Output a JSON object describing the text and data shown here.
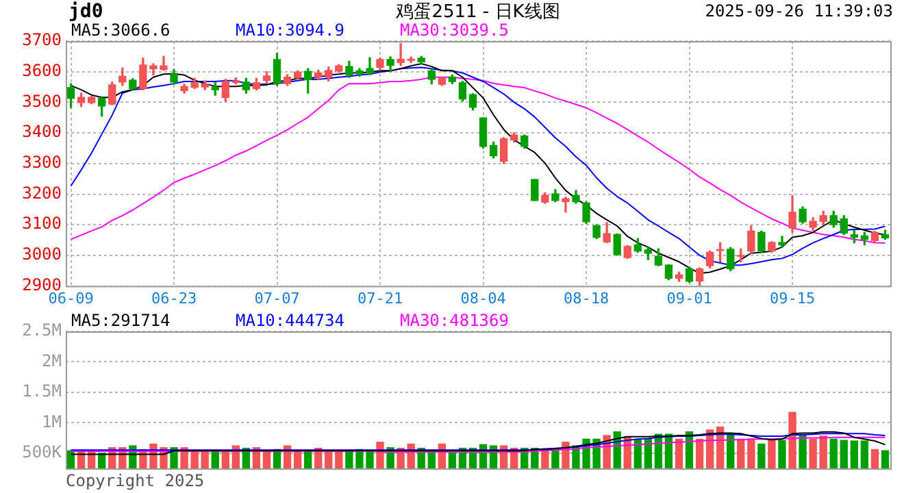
{
  "chart_data": [
    {
      "type": "candlestick",
      "title": "鸡蛋2511 - 日K线图",
      "annotations": [
        "jd0",
        "2025-09-26 11:39:03"
      ],
      "categories": [
        "06-09",
        null,
        null,
        null,
        null,
        null,
        null,
        null,
        null,
        null,
        "06-23",
        null,
        null,
        null,
        null,
        null,
        null,
        null,
        null,
        null,
        "07-07",
        null,
        null,
        null,
        null,
        null,
        null,
        null,
        null,
        null,
        "07-21",
        null,
        null,
        null,
        null,
        null,
        null,
        null,
        null,
        null,
        "08-04",
        null,
        null,
        null,
        null,
        null,
        null,
        null,
        null,
        null,
        "08-18",
        null,
        null,
        null,
        null,
        null,
        null,
        null,
        null,
        null,
        "09-01",
        null,
        null,
        null,
        null,
        null,
        null,
        null,
        null,
        null,
        "09-15",
        null,
        null,
        null,
        null,
        null,
        null,
        null,
        null,
        null
      ],
      "ohlc": [
        [
          3548,
          3561,
          3483,
          3513
        ],
        [
          3499,
          3530,
          3486,
          3516
        ],
        [
          3499,
          3520,
          3495,
          3516
        ],
        [
          3513,
          3515,
          3455,
          3488
        ],
        [
          3494,
          3566,
          3492,
          3557
        ],
        [
          3566,
          3612,
          3555,
          3585
        ],
        [
          3572,
          3577,
          3541,
          3545
        ],
        [
          3545,
          3644,
          3541,
          3622
        ],
        [
          3610,
          3626,
          3589,
          3619
        ],
        [
          3607,
          3650,
          3605,
          3619
        ],
        [
          3592,
          3607,
          3559,
          3566
        ],
        [
          3538,
          3559,
          3530,
          3552
        ],
        [
          3549,
          3578,
          3545,
          3564
        ],
        [
          3550,
          3570,
          3541,
          3559
        ],
        [
          3550,
          3564,
          3523,
          3541
        ],
        [
          3516,
          3575,
          3503,
          3568
        ],
        [
          3565,
          3580,
          3560,
          3570
        ],
        [
          3566,
          3578,
          3530,
          3541
        ],
        [
          3545,
          3578,
          3540,
          3564
        ],
        [
          3571,
          3600,
          3564,
          3586
        ],
        [
          3640,
          3660,
          3555,
          3561
        ],
        [
          3561,
          3590,
          3555,
          3582
        ],
        [
          3580,
          3603,
          3575,
          3599
        ],
        [
          3601,
          3610,
          3530,
          3574
        ],
        [
          3582,
          3605,
          3575,
          3596
        ],
        [
          3582,
          3615,
          3570,
          3604
        ],
        [
          3603,
          3623,
          3598,
          3619
        ],
        [
          3617,
          3634,
          3581,
          3589
        ],
        [
          3603,
          3610,
          3585,
          3593
        ],
        [
          3610,
          3646,
          3590,
          3596
        ],
        [
          3614,
          3645,
          3605,
          3640
        ],
        [
          3640,
          3648,
          3600,
          3621
        ],
        [
          3630,
          3692,
          3620,
          3641
        ],
        [
          3637,
          3648,
          3630,
          3641
        ],
        [
          3644,
          3650,
          3625,
          3632
        ],
        [
          3603,
          3610,
          3560,
          3575
        ],
        [
          3559,
          3583,
          3555,
          3578
        ],
        [
          3582,
          3589,
          3561,
          3568
        ],
        [
          3564,
          3568,
          3504,
          3511
        ],
        [
          3525,
          3528,
          3475,
          3484
        ],
        [
          3449,
          3449,
          3350,
          3356
        ],
        [
          3359,
          3370,
          3318,
          3325
        ],
        [
          3308,
          3385,
          3300,
          3381
        ],
        [
          3377,
          3400,
          3370,
          3393
        ],
        [
          3390,
          3393,
          3350,
          3356
        ],
        [
          3248,
          3248,
          3179,
          3179
        ],
        [
          3174,
          3204,
          3170,
          3196
        ],
        [
          3201,
          3215,
          3175,
          3179
        ],
        [
          3175,
          3190,
          3141,
          3185
        ],
        [
          3196,
          3212,
          3170,
          3175
        ],
        [
          3171,
          3175,
          3105,
          3110
        ],
        [
          3097,
          3100,
          3055,
          3059
        ],
        [
          3044,
          3107,
          3041,
          3071
        ],
        [
          3068,
          3070,
          3000,
          3003
        ],
        [
          2993,
          3032,
          2990,
          3029
        ],
        [
          3034,
          3055,
          3010,
          3014
        ],
        [
          3018,
          3027,
          2986,
          3007
        ],
        [
          2997,
          3021,
          2966,
          2968
        ],
        [
          2968,
          2970,
          2920,
          2925
        ],
        [
          2925,
          2945,
          2915,
          2936
        ],
        [
          2956,
          2960,
          2912,
          2915
        ],
        [
          2916,
          2959,
          2901,
          2956
        ],
        [
          2966,
          3014,
          2959,
          3010
        ],
        [
          3016,
          3041,
          2979,
          3019
        ],
        [
          3020,
          3025,
          2950,
          2956
        ],
        [
          2997,
          3021,
          2979,
          3000
        ],
        [
          3014,
          3096,
          3007,
          3079
        ],
        [
          3075,
          3079,
          3010,
          3014
        ],
        [
          3014,
          3045,
          3010,
          3042
        ],
        [
          3042,
          3062,
          3027,
          3034
        ],
        [
          3089,
          3194,
          3075,
          3141
        ],
        [
          3151,
          3158,
          3105,
          3110
        ],
        [
          3092,
          3123,
          3082,
          3111
        ],
        [
          3111,
          3144,
          3100,
          3130
        ],
        [
          3130,
          3144,
          3092,
          3100
        ],
        [
          3119,
          3130,
          3068,
          3073
        ],
        [
          3067,
          3082,
          3041,
          3059
        ],
        [
          3064,
          3075,
          3034,
          3052
        ],
        [
          3048,
          3078,
          3044,
          3075
        ],
        [
          3067,
          3082,
          3052,
          3057
        ]
      ],
      "colors": [
        "#009f00",
        "#f05454",
        "#f05454",
        "#009f00",
        "#f05454",
        "#f05454",
        "#009f00",
        "#f05454",
        "#f05454",
        "#f05454",
        "#009f00",
        "#f05454",
        "#f05454",
        "#f05454",
        "#009f00",
        "#f05454",
        "#f05454",
        "#009f00",
        "#f05454",
        "#f05454",
        "#009f00",
        "#f05454",
        "#f05454",
        "#009f00",
        "#f05454",
        "#f05454",
        "#f05454",
        "#009f00",
        "#009f00",
        "#009f00",
        "#f05454",
        "#009f00",
        "#f05454",
        "#f05454",
        "#009f00",
        "#009f00",
        "#f05454",
        "#009f00",
        "#009f00",
        "#009f00",
        "#009f00",
        "#009f00",
        "#f05454",
        "#f05454",
        "#009f00",
        "#009f00",
        "#f05454",
        "#009f00",
        "#f05454",
        "#009f00",
        "#009f00",
        "#009f00",
        "#f05454",
        "#009f00",
        "#f05454",
        "#009f00",
        "#009f00",
        "#009f00",
        "#009f00",
        "#f05454",
        "#009f00",
        "#f05454",
        "#f05454",
        "#f05454",
        "#009f00",
        "#f05454",
        "#f05454",
        "#009f00",
        "#f05454",
        "#009f00",
        "#f05454",
        "#009f00",
        "#f05454",
        "#f05454",
        "#009f00",
        "#009f00",
        "#009f00",
        "#009f00",
        "#f05454",
        "#009f00"
      ],
      "series": [
        {
          "name": "MA5:3066.6",
          "color": "#000000",
          "type": "line",
          "values": [
            3555,
            3541,
            3524,
            3516,
            3516,
            3534,
            3541,
            3555,
            3582,
            3592,
            3593,
            3589,
            3572,
            3561,
            3552,
            3552,
            3552,
            3555,
            3555,
            3557,
            3568,
            3571,
            3578,
            3578,
            3582,
            3589,
            3592,
            3596,
            3596,
            3599,
            3603,
            3603,
            3610,
            3619,
            3626,
            3617,
            3603,
            3603,
            3582,
            3548,
            3514,
            3459,
            3411,
            3377,
            3356,
            3336,
            3301,
            3253,
            3212,
            3185,
            3164,
            3137,
            3116,
            3096,
            3062,
            3041,
            3027,
            3007,
            2993,
            2979,
            2959,
            2941,
            2945,
            2955,
            2966,
            2986,
            3007,
            3010,
            3014,
            3027,
            3059,
            3064,
            3075,
            3096,
            3116,
            3103,
            3092,
            3082,
            3073,
            3067
          ]
        },
        {
          "name": "MA10:3094.9",
          "color": "#0000ff",
          "type": "line",
          "values": [
            3227,
            3279,
            3334,
            3396,
            3458,
            3530,
            3541,
            3544,
            3550,
            3555,
            3561,
            3568,
            3568,
            3568,
            3568,
            3571,
            3571,
            3561,
            3559,
            3559,
            3561,
            3566,
            3571,
            3575,
            3575,
            3578,
            3582,
            3585,
            3589,
            3592,
            3599,
            3603,
            3610,
            3612,
            3614,
            3610,
            3605,
            3603,
            3596,
            3582,
            3568,
            3548,
            3527,
            3500,
            3479,
            3452,
            3418,
            3384,
            3356,
            3322,
            3294,
            3253,
            3219,
            3192,
            3171,
            3144,
            3116,
            3096,
            3075,
            3055,
            3027,
            3000,
            2982,
            2975,
            2968,
            2968,
            2973,
            2979,
            2986,
            2990,
            3003,
            3023,
            3041,
            3055,
            3068,
            3082,
            3085,
            3085,
            3086,
            3095
          ]
        },
        {
          "name": "MA30:3039.5",
          "color": "#ff00ff",
          "type": "line",
          "values": [
            3052,
            3066,
            3080,
            3093,
            3114,
            3130,
            3148,
            3169,
            3190,
            3213,
            3238,
            3252,
            3265,
            3279,
            3293,
            3309,
            3327,
            3341,
            3358,
            3376,
            3392,
            3410,
            3431,
            3451,
            3479,
            3506,
            3541,
            3561,
            3561,
            3561,
            3564,
            3568,
            3568,
            3571,
            3575,
            3582,
            3582,
            3582,
            3578,
            3575,
            3571,
            3562,
            3557,
            3552,
            3548,
            3537,
            3527,
            3514,
            3504,
            3493,
            3482,
            3466,
            3448,
            3431,
            3411,
            3390,
            3370,
            3347,
            3325,
            3304,
            3281,
            3256,
            3236,
            3215,
            3196,
            3174,
            3155,
            3137,
            3119,
            3105,
            3089,
            3082,
            3075,
            3068,
            3064,
            3059,
            3052,
            3048,
            3041,
            3040
          ]
        }
      ],
      "ylim": [
        2900,
        3700
      ],
      "yticks": [
        2900,
        3000,
        3100,
        3200,
        3300,
        3400,
        3500,
        3600,
        3700
      ],
      "grid": true,
      "legend": "top left"
    },
    {
      "type": "bar",
      "annotations": [
        "Copyright 2025"
      ],
      "categories": [
        null,
        null,
        null,
        null,
        null,
        null,
        null,
        null,
        null,
        null,
        null,
        null,
        null,
        null,
        null,
        null,
        null,
        null,
        null,
        null,
        null,
        null,
        null,
        null,
        null,
        null,
        null,
        null,
        null,
        null,
        null,
        null,
        null,
        null,
        null,
        null,
        null,
        null,
        null,
        null,
        null,
        null,
        null,
        null,
        null,
        null,
        null,
        null,
        null,
        null,
        null,
        null,
        null,
        null,
        null,
        null,
        null,
        null,
        null,
        null,
        null,
        null,
        null,
        null,
        null,
        null,
        null,
        null,
        null,
        null,
        null,
        null,
        null,
        null,
        null,
        null,
        null,
        null,
        null,
        null
      ],
      "series": [
        {
          "values": [
            540000,
            540000,
            540000,
            500000,
            590000,
            590000,
            620000,
            560000,
            650000,
            590000,
            590000,
            590000,
            530000,
            530000,
            530000,
            530000,
            620000,
            580000,
            590000,
            540000,
            560000,
            620000,
            540000,
            540000,
            580000,
            540000,
            540000,
            540000,
            560000,
            530000,
            680000,
            590000,
            580000,
            650000,
            580000,
            540000,
            650000,
            540000,
            580000,
            580000,
            640000,
            620000,
            620000,
            580000,
            580000,
            580000,
            560000,
            540000,
            680000,
            620000,
            730000,
            730000,
            790000,
            850000,
            770000,
            730000,
            730000,
            810000,
            810000,
            730000,
            850000,
            730000,
            880000,
            930000,
            810000,
            730000,
            730000,
            650000,
            730000,
            710000,
            1170000,
            800000,
            730000,
            780000,
            730000,
            710000,
            700000,
            700000,
            560000,
            540000
          ],
          "colors": [
            "#009f00",
            "#f05454",
            "#f05454",
            "#009f00",
            "#f05454",
            "#f05454",
            "#009f00",
            "#f05454",
            "#f05454",
            "#f05454",
            "#009f00",
            "#f05454",
            "#f05454",
            "#f05454",
            "#009f00",
            "#f05454",
            "#f05454",
            "#009f00",
            "#f05454",
            "#f05454",
            "#009f00",
            "#f05454",
            "#f05454",
            "#009f00",
            "#f05454",
            "#f05454",
            "#f05454",
            "#009f00",
            "#009f00",
            "#009f00",
            "#f05454",
            "#009f00",
            "#f05454",
            "#f05454",
            "#009f00",
            "#009f00",
            "#f05454",
            "#009f00",
            "#009f00",
            "#009f00",
            "#009f00",
            "#009f00",
            "#f05454",
            "#f05454",
            "#009f00",
            "#009f00",
            "#f05454",
            "#009f00",
            "#f05454",
            "#009f00",
            "#009f00",
            "#009f00",
            "#f05454",
            "#009f00",
            "#f05454",
            "#009f00",
            "#009f00",
            "#009f00",
            "#009f00",
            "#f05454",
            "#009f00",
            "#f05454",
            "#f05454",
            "#f05454",
            "#009f00",
            "#f05454",
            "#f05454",
            "#009f00",
            "#f05454",
            "#009f00",
            "#f05454",
            "#009f00",
            "#f05454",
            "#f05454",
            "#009f00",
            "#009f00",
            "#009f00",
            "#009f00",
            "#f05454",
            "#009f00"
          ]
        },
        {
          "name": "MA5:291714",
          "color": "#000000",
          "type": "line",
          "values": [
            480000,
            480000,
            480000,
            480000,
            480000,
            480000,
            480000,
            480000,
            480000,
            480000,
            540000,
            540000,
            540000,
            540000,
            540000,
            540000,
            540000,
            540000,
            540000,
            540000,
            540000,
            540000,
            540000,
            540000,
            540000,
            540000,
            540000,
            540000,
            540000,
            540000,
            540000,
            540000,
            540000,
            540000,
            540000,
            540000,
            540000,
            540000,
            540000,
            540000,
            540000,
            540000,
            540000,
            540000,
            540000,
            560000,
            560000,
            570000,
            590000,
            610000,
            640000,
            660000,
            700000,
            740000,
            770000,
            770000,
            770000,
            780000,
            780000,
            790000,
            790000,
            800000,
            820000,
            830000,
            830000,
            820000,
            780000,
            740000,
            720000,
            730000,
            820000,
            830000,
            830000,
            850000,
            850000,
            830000,
            760000,
            730000,
            700000,
            640000
          ]
        },
        {
          "name": "MA10:444734",
          "color": "#0000ff",
          "type": "line",
          "values": [
            550000,
            550000,
            550000,
            550000,
            550000,
            550000,
            550000,
            550000,
            550000,
            550000,
            550000,
            550000,
            550000,
            550000,
            550000,
            550000,
            550000,
            550000,
            550000,
            550000,
            550000,
            550000,
            550000,
            550000,
            550000,
            550000,
            550000,
            550000,
            550000,
            550000,
            550000,
            550000,
            550000,
            550000,
            550000,
            550000,
            550000,
            550000,
            550000,
            550000,
            550000,
            550000,
            550000,
            550000,
            550000,
            560000,
            570000,
            580000,
            590000,
            600000,
            620000,
            640000,
            660000,
            690000,
            710000,
            730000,
            740000,
            760000,
            770000,
            780000,
            780000,
            790000,
            800000,
            810000,
            810000,
            800000,
            790000,
            780000,
            780000,
            780000,
            800000,
            800000,
            810000,
            820000,
            820000,
            820000,
            820000,
            820000,
            800000,
            790000
          ]
        },
        {
          "name": "MA30:481369",
          "color": "#ff00ff",
          "type": "line",
          "values": [
            530000,
            530000,
            530000,
            530000,
            530000,
            530000,
            530000,
            530000,
            530000,
            530000,
            530000,
            530000,
            530000,
            530000,
            530000,
            530000,
            530000,
            530000,
            530000,
            530000,
            530000,
            530000,
            530000,
            530000,
            530000,
            530000,
            530000,
            530000,
            530000,
            530000,
            520000,
            520000,
            520000,
            520000,
            520000,
            520000,
            520000,
            520000,
            520000,
            520000,
            520000,
            520000,
            520000,
            520000,
            520000,
            530000,
            540000,
            550000,
            560000,
            570000,
            590000,
            600000,
            610000,
            620000,
            630000,
            640000,
            650000,
            660000,
            670000,
            680000,
            690000,
            700000,
            710000,
            710000,
            720000,
            720000,
            730000,
            730000,
            730000,
            740000,
            740000,
            750000,
            750000,
            750000,
            760000,
            760000,
            760000,
            760000,
            760000,
            760000
          ]
        }
      ],
      "ylim": [
        250000,
        2500000
      ],
      "yticks": [
        {
          "value": 500000,
          "label": "500K"
        },
        {
          "value": 1000000,
          "label": "1M"
        },
        {
          "value": 1500000,
          "label": "1.5M"
        },
        {
          "value": 2000000,
          "label": "2M"
        },
        {
          "value": 2500000,
          "label": "2.5M"
        }
      ],
      "grid": "y",
      "legend": "top left",
      "tick_labels": "y"
    }
  ]
}
